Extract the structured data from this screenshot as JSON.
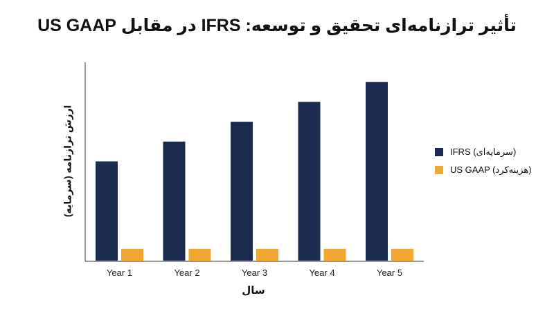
{
  "chart_data": {
    "type": "bar",
    "title": "تأثیر ترازنامه‌ای تحقیق و توسعه: IFRS در مقابل US GAAP",
    "xlabel": "سال",
    "ylabel": "ارزش ترازنامه (سرمایه)",
    "categories": [
      "Year 1",
      "Year 2",
      "Year 3",
      "Year 4",
      "Year 5"
    ],
    "series": [
      {
        "name": "IFRS (سرمایه‌ای)",
        "values": [
          50,
          60,
          70,
          80,
          90
        ],
        "color": "#1b2b4f"
      },
      {
        "name": "US GAAP (هزینه‌کرد)",
        "values": [
          6,
          6,
          6,
          6,
          6
        ],
        "color": "#f0a830"
      }
    ],
    "ylim": [
      0,
      100
    ],
    "grid": false,
    "legend": "right"
  }
}
